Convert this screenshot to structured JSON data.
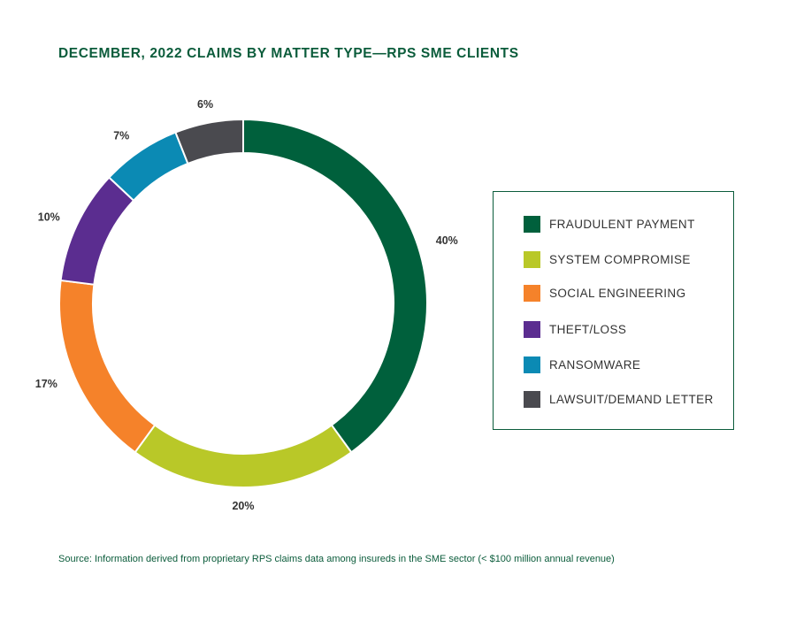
{
  "title": "DECEMBER, 2022 CLAIMS BY MATTER TYPE—RPS SME CLIENTS",
  "source": "Source: Information derived from proprietary RPS claims data among insureds in the SME sector (< $100 million annual revenue)",
  "chart_data": {
    "type": "pie",
    "variant": "donut",
    "title": "DECEMBER, 2022 CLAIMS BY MATTER TYPE—RPS SME CLIENTS",
    "legend_position": "right",
    "slices": [
      {
        "label": "FRAUDULENT PAYMENT",
        "value": 40,
        "value_label": "40%",
        "color": "#00603c"
      },
      {
        "label": "SYSTEM COMPROMISE",
        "value": 20,
        "value_label": "20%",
        "color": "#b9c828"
      },
      {
        "label": "SOCIAL ENGINEERING",
        "value": 17,
        "value_label": "17%",
        "color": "#f5822a"
      },
      {
        "label": "THEFT/LOSS",
        "value": 10,
        "value_label": "10%",
        "color": "#5b2d90"
      },
      {
        "label": "RANSOMWARE",
        "value": 7,
        "value_label": "7%",
        "color": "#0b8ab4"
      },
      {
        "label": "LAWSUIT/DEMAND LETTER",
        "value": 6,
        "value_label": "6%",
        "color": "#4a4a4f"
      }
    ]
  },
  "legend": {
    "items": [
      {
        "label": "FRAUDULENT PAYMENT",
        "color": "#00603c"
      },
      {
        "label": "SYSTEM COMPROMISE",
        "color": "#b9c828"
      },
      {
        "label": "SOCIAL ENGINEERING",
        "color": "#f5822a"
      },
      {
        "label": "THEFT/LOSS",
        "color": "#5b2d90"
      },
      {
        "label": "RANSOMWARE",
        "color": "#0b8ab4"
      },
      {
        "label": "LAWSUIT/DEMAND LETTER",
        "color": "#4a4a4f"
      }
    ]
  }
}
